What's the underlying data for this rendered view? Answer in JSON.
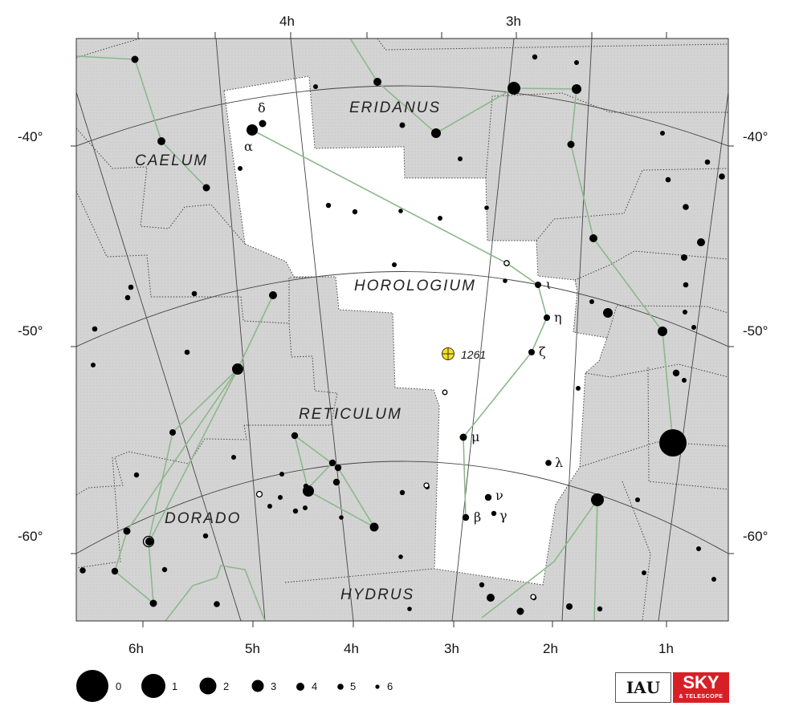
{
  "chart_data": {
    "type": "star-chart",
    "title": "Horologium",
    "colors": {
      "background": "#d6d6d6",
      "constellation_area": "#ffffff",
      "lines": "#7aab7a",
      "boundary": "#555555",
      "grid": "#333333",
      "cluster": "#f7e21b"
    },
    "ra_labels": [
      "4h",
      "3h",
      "6h",
      "5h",
      "4h",
      "3h",
      "2h",
      "1h"
    ],
    "dec_labels_left": [
      "-40°",
      "-50°",
      "-60°"
    ],
    "dec_labels_right": [
      "-40°",
      "-50°",
      "-60°"
    ],
    "constellations": [
      "CAELUM",
      "ERIDANUS",
      "HOROLOGIUM",
      "RETICULUM",
      "DORADO",
      "HYDRUS"
    ],
    "star_labels": [
      "δ",
      "α",
      "ι",
      "η",
      "ζ",
      "μ",
      "λ",
      "ν",
      "β",
      "γ"
    ],
    "deep_sky": [
      {
        "name": "1261",
        "type": "globular-cluster"
      }
    ],
    "magnitude_legend": [
      "0",
      "1",
      "2",
      "3",
      "4",
      "5",
      "6"
    ]
  },
  "logos": {
    "iau": "IAU",
    "st_top": "SKY",
    "st_bottom": "& TELESCOPE"
  }
}
